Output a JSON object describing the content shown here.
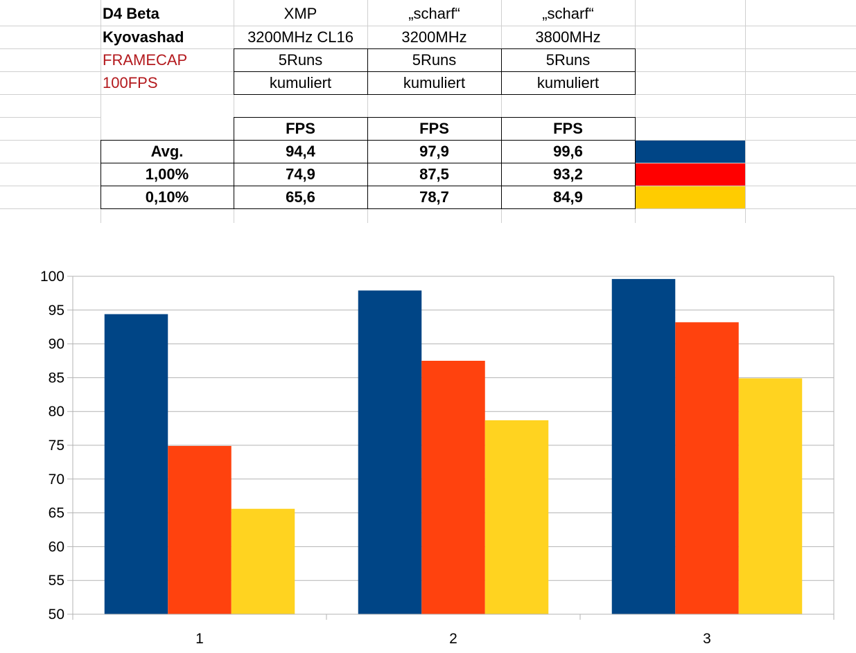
{
  "table": {
    "header_rows": [
      [
        "D4 Beta",
        "XMP",
        "„scharf“",
        "„scharf“"
      ],
      [
        "Kyovashad",
        "3200MHz CL16",
        "3200MHz",
        "3800MHz"
      ],
      [
        "FRAMECAP",
        "5Runs",
        "5Runs",
        "5Runs"
      ],
      [
        "100FPS",
        "kumuliert",
        "kumuliert",
        "kumuliert"
      ]
    ],
    "fps_headers": [
      "FPS",
      "FPS",
      "FPS"
    ],
    "rows": [
      {
        "label": "Avg.",
        "values": [
          "94,4",
          "97,9",
          "99,6"
        ],
        "color": "#004586"
      },
      {
        "label": "1,00%",
        "values": [
          "74,9",
          "87,5",
          "93,2"
        ],
        "color": "#ff0000"
      },
      {
        "label": "0,10%",
        "values": [
          "65,6",
          "78,7",
          "84,9"
        ],
        "color": "#ffcc00"
      }
    ]
  },
  "chart_data": {
    "type": "bar",
    "categories": [
      "1",
      "2",
      "3"
    ],
    "series": [
      {
        "name": "Avg.",
        "values": [
          94.4,
          97.9,
          99.6
        ],
        "color": "#004586"
      },
      {
        "name": "1,00%",
        "values": [
          74.9,
          87.5,
          93.2
        ],
        "color": "#ff420e"
      },
      {
        "name": "0,10%",
        "values": [
          65.6,
          78.7,
          84.9
        ],
        "color": "#ffd320"
      }
    ],
    "ylim": [
      50,
      100
    ],
    "yticks": [
      50,
      55,
      60,
      65,
      70,
      75,
      80,
      85,
      90,
      95,
      100
    ],
    "grid": true,
    "title": "",
    "xlabel": "",
    "ylabel": ""
  }
}
